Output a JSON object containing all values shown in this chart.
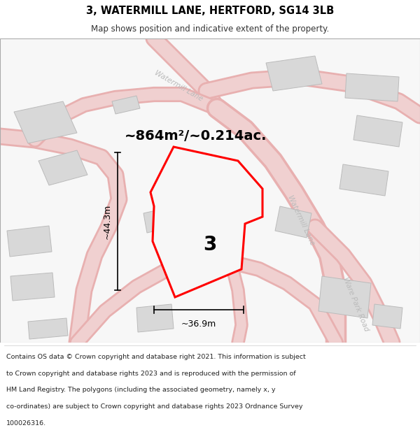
{
  "title": "3, WATERMILL LANE, HERTFORD, SG14 3LB",
  "subtitle": "Map shows position and indicative extent of the property.",
  "footer_lines": [
    "Contains OS data © Crown copyright and database right 2021. This information is subject",
    "to Crown copyright and database rights 2023 and is reproduced with the permission of",
    "HM Land Registry. The polygons (including the associated geometry, namely x, y",
    "co-ordinates) are subject to Crown copyright and database rights 2023 Ordnance Survey",
    "100026316."
  ],
  "area_label": "~864m²/~0.214ac.",
  "number_label": "3",
  "dim_width": "~36.9m",
  "dim_height": "~44.3m",
  "map_bg": "#f7f7f7",
  "road_fill": "#f0d0d0",
  "road_stroke": "#e8b0b0",
  "building_fill": "#d8d8d8",
  "building_edge": "#bbbbbb",
  "property_edge": "#ff0000",
  "property_fill": "#f7f7f7",
  "title_color": "#000000",
  "subtitle_color": "#333333",
  "footer_color": "#222222",
  "dim_color": "#000000",
  "label_color": "#cccccc",
  "road_label_color": "#bbbbbb"
}
